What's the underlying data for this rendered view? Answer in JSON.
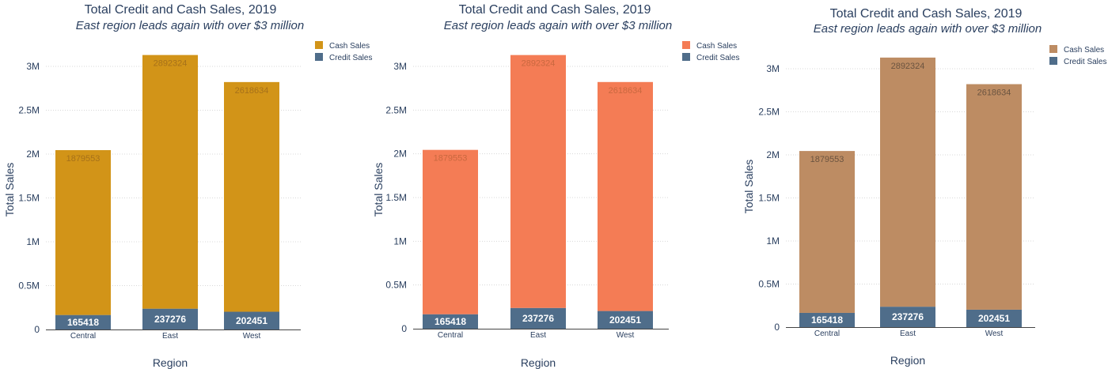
{
  "chart_data": [
    {
      "type": "bar",
      "stacked": true,
      "title": "Total Credit and Cash Sales, 2019",
      "subtitle": "East region leads again with over $3 million",
      "xlabel": "Region",
      "ylabel": "Total Sales",
      "categories": [
        "Central",
        "East",
        "West"
      ],
      "series": [
        {
          "name": "Credit Sales",
          "values": [
            165418,
            237276,
            202451
          ],
          "color": "#4f6d8a"
        },
        {
          "name": "Cash Sales",
          "values": [
            1879553,
            2892324,
            2618634
          ],
          "color": "#d29418"
        }
      ],
      "ylim": [
        0,
        3250000
      ],
      "yticks": [
        0,
        500000,
        1000000,
        1500000,
        2000000,
        2500000,
        3000000
      ],
      "ytick_labels": [
        "0",
        "0.5M",
        "1M",
        "1.5M",
        "2M",
        "2.5M",
        "3M"
      ],
      "legend": {
        "position": "top-right",
        "entries": [
          "Cash Sales",
          "Credit Sales"
        ]
      },
      "grid": true,
      "top_label_color": "#a6711a"
    },
    {
      "type": "bar",
      "stacked": true,
      "title": "Total Credit and Cash Sales, 2019",
      "subtitle": "East region leads again with over $3 million",
      "xlabel": "Region",
      "ylabel": "Total Sales",
      "categories": [
        "Central",
        "East",
        "West"
      ],
      "series": [
        {
          "name": "Credit Sales",
          "values": [
            165418,
            237276,
            202451
          ],
          "color": "#4f6d8a"
        },
        {
          "name": "Cash Sales",
          "values": [
            1879553,
            2892324,
            2618634
          ],
          "color": "#f47c55"
        }
      ],
      "ylim": [
        0,
        3250000
      ],
      "yticks": [
        0,
        500000,
        1000000,
        1500000,
        2000000,
        2500000,
        3000000
      ],
      "ytick_labels": [
        "0",
        "0.5M",
        "1M",
        "1.5M",
        "2M",
        "2.5M",
        "3M"
      ],
      "legend": {
        "position": "top-right",
        "entries": [
          "Cash Sales",
          "Credit Sales"
        ]
      },
      "grid": true,
      "top_label_color": "#c9683f"
    },
    {
      "type": "bar",
      "stacked": true,
      "title": "Total Credit and Cash Sales, 2019",
      "subtitle": "East region leads again with over $3 million",
      "xlabel": "Region",
      "ylabel": "Total Sales",
      "categories": [
        "Central",
        "East",
        "West"
      ],
      "series": [
        {
          "name": "Credit Sales",
          "values": [
            165418,
            237276,
            202451
          ],
          "color": "#4f6d8a"
        },
        {
          "name": "Cash Sales",
          "values": [
            1879553,
            2892324,
            2618634
          ],
          "color": "#bd8c63"
        }
      ],
      "ylim": [
        0,
        3250000
      ],
      "yticks": [
        0,
        500000,
        1000000,
        1500000,
        2000000,
        2500000,
        3000000
      ],
      "ytick_labels": [
        "0",
        "0.5M",
        "1M",
        "1.5M",
        "2M",
        "2.5M",
        "3M"
      ],
      "legend": {
        "position": "top-right",
        "entries": [
          "Cash Sales",
          "Credit Sales"
        ]
      },
      "grid": true,
      "top_label_color": "#6b5440"
    }
  ]
}
